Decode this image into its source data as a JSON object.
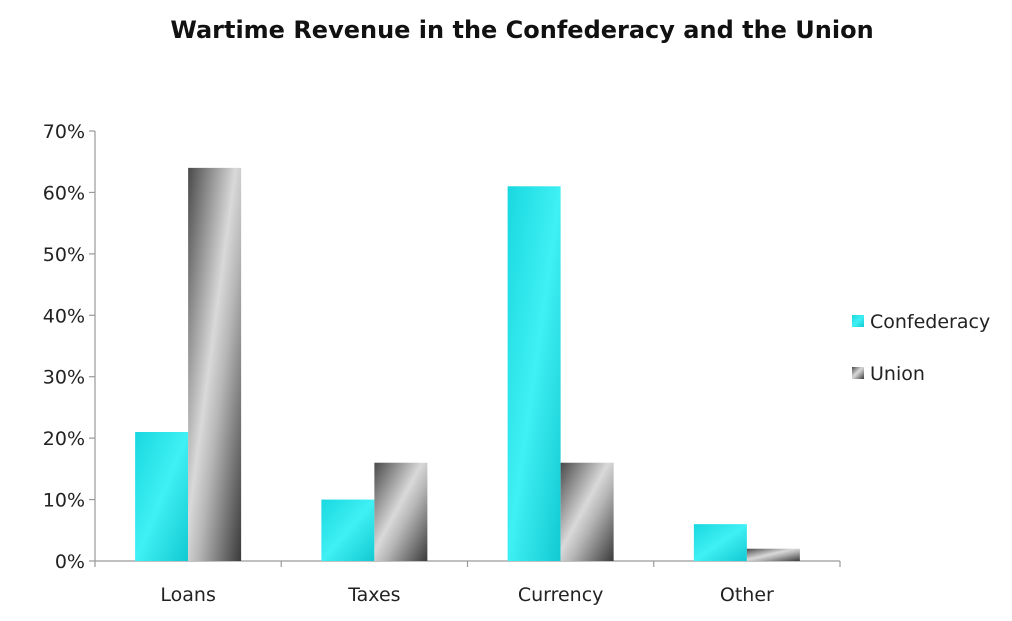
{
  "chart_data": {
    "type": "bar",
    "title": "Wartime Revenue in the Confederacy and the Union",
    "xlabel": "",
    "ylabel": "",
    "categories": [
      "Loans",
      "Taxes",
      "Currency",
      "Other"
    ],
    "series": [
      {
        "name": "Confederacy",
        "values": [
          21,
          10,
          61,
          6
        ],
        "color": "#1ee3e8"
      },
      {
        "name": "Union",
        "values": [
          64,
          16,
          16,
          2
        ],
        "color": "#8c8c8c"
      }
    ],
    "ylim": [
      0,
      70
    ],
    "yticks": [
      0,
      10,
      20,
      30,
      40,
      50,
      60,
      70
    ],
    "ytick_labels": [
      "0%",
      "10%",
      "20%",
      "30%",
      "40%",
      "50%",
      "60%",
      "70%"
    ],
    "grid": false,
    "legend_position": "right"
  }
}
